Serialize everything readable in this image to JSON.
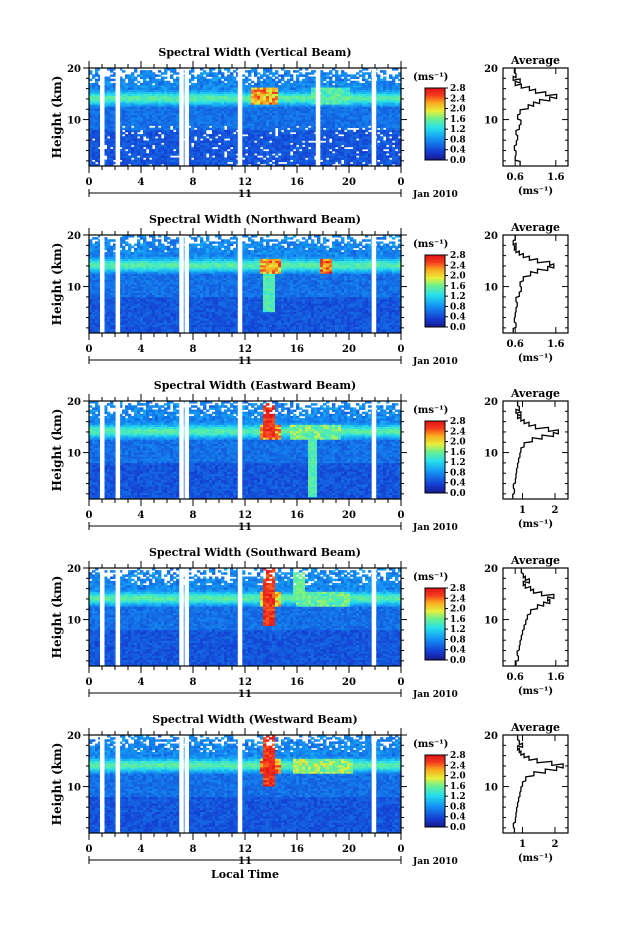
{
  "figure": {
    "xlabel": "Local Time",
    "ylabel": "Height (km)",
    "date_label": "Jan 2010",
    "day_label": "11",
    "colorbar_unit": "(ms⁻¹)",
    "profile_title": "Average",
    "profile_xlabel": "(ms⁻¹)"
  },
  "chart_data": [
    {
      "type": "heatmap",
      "title": "Spectral Width (Vertical Beam)",
      "x_ticks": [
        "0",
        "4",
        "8",
        "12",
        "16",
        "20",
        "0"
      ],
      "y_ticks": [
        "10",
        "20"
      ],
      "xlim": [
        0,
        24
      ],
      "ylim": [
        1,
        20
      ],
      "colorbar_ticks": [
        "0.0",
        "0.4",
        "0.8",
        "1.2",
        "1.6",
        "2.0",
        "2.4",
        "2.8"
      ],
      "gaps_hours": [
        1.0,
        2.2,
        7.1,
        7.5,
        11.6,
        17.6,
        21.9
      ],
      "turbulence": [
        {
          "t": 13.5,
          "h": 14.5,
          "w": 2.0,
          "v": 2.6
        },
        {
          "t": 18.5,
          "h": 14.5,
          "w": 3.0,
          "v": 1.7
        }
      ],
      "plumes": [],
      "profile": {
        "xticks": [
          "0.6",
          "1.6"
        ],
        "xlim": [
          0.3,
          1.9
        ],
        "yticks": [
          "10",
          "20"
        ],
        "heights": [
          1.5,
          2.5,
          3.5,
          4.5,
          5.5,
          6.5,
          7.5,
          8.5,
          9.5,
          10.5,
          11.5,
          12.5,
          13.0,
          13.5,
          14.0,
          14.5,
          15.0,
          15.5,
          16.0,
          16.5,
          17.0,
          17.5,
          18.0,
          18.5,
          19.5
        ],
        "values": [
          0.72,
          0.6,
          0.62,
          0.58,
          0.63,
          0.66,
          0.62,
          0.7,
          0.74,
          0.66,
          0.72,
          0.92,
          1.05,
          1.2,
          1.45,
          1.62,
          1.35,
          1.1,
          0.95,
          0.75,
          0.6,
          0.72,
          0.55,
          0.62,
          0.58
        ]
      }
    },
    {
      "type": "heatmap",
      "title": "Spectral Width (Northward Beam)",
      "x_ticks": [
        "0",
        "4",
        "8",
        "12",
        "16",
        "20",
        "0"
      ],
      "y_ticks": [
        "10",
        "20"
      ],
      "xlim": [
        0,
        24
      ],
      "ylim": [
        1,
        20
      ],
      "colorbar_ticks": [
        "0.0",
        "0.4",
        "0.8",
        "1.2",
        "1.6",
        "2.0",
        "2.4",
        "2.8"
      ],
      "gaps_hours": [
        1.0,
        2.2,
        7.1,
        7.5,
        11.6,
        21.9
      ],
      "turbulence": [
        {
          "t": 14.0,
          "h": 14.0,
          "w": 1.5,
          "v": 2.6
        },
        {
          "t": 18.3,
          "h": 14.0,
          "w": 1.0,
          "v": 2.8
        }
      ],
      "plumes": [
        {
          "t": 13.8,
          "h0": 5.0,
          "h1": 13.5,
          "v": 1.6
        }
      ],
      "profile": {
        "xticks": [
          "0.6",
          "1.6"
        ],
        "xlim": [
          0.3,
          1.9
        ],
        "yticks": [
          "10",
          "20"
        ],
        "heights": [
          1.5,
          2.5,
          3.5,
          4.5,
          5.5,
          6.5,
          7.5,
          8.5,
          9.5,
          10.5,
          11.5,
          12.5,
          13.0,
          13.5,
          14.0,
          14.5,
          15.0,
          15.5,
          16.0,
          16.5,
          17.0,
          17.5,
          18.0,
          18.5,
          19.5
        ],
        "values": [
          0.55,
          0.62,
          0.58,
          0.6,
          0.62,
          0.65,
          0.62,
          0.7,
          0.75,
          0.72,
          0.8,
          0.98,
          1.15,
          1.4,
          1.55,
          1.45,
          1.15,
          0.95,
          0.8,
          0.7,
          0.62,
          0.58,
          0.62,
          0.55,
          0.6
        ]
      }
    },
    {
      "type": "heatmap",
      "title": "Spectral Width (Eastward Beam)",
      "x_ticks": [
        "0",
        "4",
        "8",
        "12",
        "16",
        "20",
        "0"
      ],
      "y_ticks": [
        "10",
        "20"
      ],
      "xlim": [
        0,
        24
      ],
      "ylim": [
        1,
        20
      ],
      "colorbar_ticks": [
        "0.0",
        "0.4",
        "0.8",
        "1.2",
        "1.6",
        "2.0",
        "2.4",
        "2.8"
      ],
      "gaps_hours": [
        1.0,
        2.2,
        7.1,
        7.5,
        11.6,
        21.9
      ],
      "turbulence": [
        {
          "t": 14.0,
          "h": 14.0,
          "w": 1.5,
          "v": 2.6
        },
        {
          "t": 17.5,
          "h": 14.0,
          "w": 4.0,
          "v": 1.9
        }
      ],
      "plumes": [
        {
          "t": 13.8,
          "h0": 13.0,
          "h1": 19.5,
          "v": 2.8
        },
        {
          "t": 17.2,
          "h0": 1.5,
          "h1": 13.0,
          "v": 1.6
        }
      ],
      "profile": {
        "xticks": [
          "1",
          "2"
        ],
        "xlim": [
          0.4,
          2.4
        ],
        "yticks": [
          "10",
          "20"
        ],
        "heights": [
          1.5,
          2.5,
          3.5,
          4.5,
          5.5,
          6.5,
          7.5,
          8.5,
          9.5,
          10.5,
          11.5,
          12.5,
          13.0,
          13.5,
          14.0,
          14.5,
          15.0,
          15.5,
          16.0,
          16.5,
          17.0,
          17.5,
          18.0,
          18.5,
          19.5
        ],
        "values": [
          0.7,
          0.75,
          0.72,
          0.78,
          0.8,
          0.82,
          0.85,
          0.88,
          0.92,
          0.95,
          1.05,
          1.3,
          1.6,
          1.95,
          2.1,
          1.8,
          1.4,
          1.2,
          1.05,
          0.95,
          0.85,
          0.95,
          0.8,
          0.9,
          0.85
        ]
      }
    },
    {
      "type": "heatmap",
      "title": "Spectral Width (Southward Beam)",
      "x_ticks": [
        "0",
        "4",
        "8",
        "12",
        "16",
        "20",
        "0"
      ],
      "y_ticks": [
        "10",
        "20"
      ],
      "xlim": [
        0,
        24
      ],
      "ylim": [
        1,
        20
      ],
      "colorbar_ticks": [
        "0.0",
        "0.4",
        "0.8",
        "1.2",
        "1.6",
        "2.0",
        "2.4",
        "2.8"
      ],
      "gaps_hours": [
        1.0,
        2.2,
        7.1,
        7.5,
        11.6,
        21.9
      ],
      "turbulence": [
        {
          "t": 14.0,
          "h": 14.0,
          "w": 1.5,
          "v": 2.4
        },
        {
          "t": 18.0,
          "h": 14.0,
          "w": 4.0,
          "v": 1.8
        }
      ],
      "plumes": [
        {
          "t": 13.8,
          "h0": 9.0,
          "h1": 19.8,
          "v": 2.8
        },
        {
          "t": 16.2,
          "h0": 14.0,
          "h1": 19.0,
          "v": 1.7
        }
      ],
      "profile": {
        "xticks": [
          "0.6",
          "1.6"
        ],
        "xlim": [
          0.3,
          1.9
        ],
        "yticks": [
          "10",
          "20"
        ],
        "heights": [
          1.5,
          2.5,
          3.5,
          4.5,
          5.5,
          6.5,
          7.5,
          8.5,
          9.5,
          10.5,
          11.5,
          12.5,
          13.0,
          13.5,
          14.0,
          14.5,
          15.0,
          15.5,
          16.0,
          16.5,
          17.0,
          17.5,
          18.0,
          18.5,
          19.5
        ],
        "values": [
          0.62,
          0.68,
          0.65,
          0.7,
          0.72,
          0.75,
          0.78,
          0.82,
          0.86,
          0.9,
          0.98,
          1.15,
          1.3,
          1.45,
          1.4,
          1.55,
          1.25,
          1.05,
          0.98,
          0.85,
          0.8,
          0.95,
          0.85,
          0.8,
          0.75
        ]
      }
    },
    {
      "type": "heatmap",
      "title": "Spectral Width (Westward Beam)",
      "x_ticks": [
        "0",
        "4",
        "8",
        "12",
        "16",
        "20",
        "0"
      ],
      "y_ticks": [
        "10",
        "20"
      ],
      "xlim": [
        0,
        24
      ],
      "ylim": [
        1,
        20
      ],
      "colorbar_ticks": [
        "0.0",
        "0.4",
        "0.8",
        "1.2",
        "1.6",
        "2.0",
        "2.4",
        "2.8"
      ],
      "gaps_hours": [
        1.0,
        2.2,
        7.1,
        7.5,
        11.6,
        21.9
      ],
      "turbulence": [
        {
          "t": 14.0,
          "h": 14.0,
          "w": 1.5,
          "v": 2.8
        },
        {
          "t": 18.0,
          "h": 14.0,
          "w": 4.5,
          "v": 2.0
        }
      ],
      "plumes": [
        {
          "t": 13.8,
          "h0": 10.0,
          "h1": 20.0,
          "v": 2.8
        }
      ],
      "profile": {
        "xticks": [
          "1",
          "2"
        ],
        "xlim": [
          0.4,
          2.4
        ],
        "yticks": [
          "10",
          "20"
        ],
        "heights": [
          1.5,
          2.5,
          3.5,
          4.5,
          5.5,
          6.5,
          7.5,
          8.5,
          9.5,
          10.5,
          11.5,
          12.5,
          13.0,
          13.5,
          14.0,
          14.5,
          15.0,
          15.5,
          16.0,
          16.5,
          17.0,
          17.5,
          18.0,
          18.5,
          19.5
        ],
        "values": [
          0.75,
          0.72,
          0.78,
          0.8,
          0.82,
          0.85,
          0.88,
          0.92,
          0.95,
          1.0,
          1.1,
          1.35,
          1.7,
          2.05,
          2.25,
          1.9,
          1.45,
          1.2,
          1.05,
          0.95,
          0.9,
          0.85,
          1.0,
          0.9,
          0.85
        ]
      }
    }
  ]
}
